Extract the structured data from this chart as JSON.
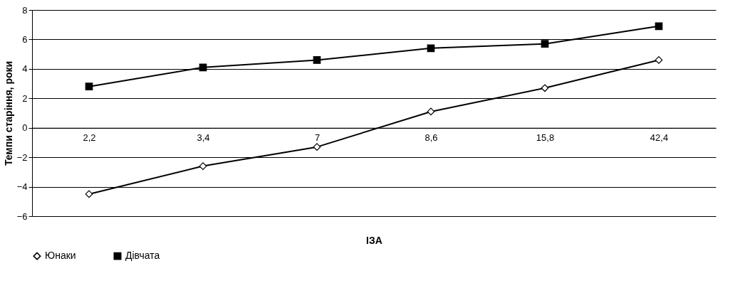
{
  "chart_data": {
    "type": "line",
    "xlabel": "ІЗА",
    "ylabel": "Темпи старіння, роки",
    "categories": [
      "2,2",
      "3,4",
      "7",
      "8,6",
      "15,8",
      "42,4"
    ],
    "series": [
      {
        "name": "Юнаки",
        "color": "#000000",
        "marker": "diamond",
        "values": [
          -4.5,
          -2.6,
          -1.3,
          1.1,
          2.7,
          4.6
        ]
      },
      {
        "name": "Дівчата",
        "color": "#000000",
        "marker": "square",
        "values": [
          2.8,
          4.1,
          4.6,
          5.4,
          5.7,
          6.9
        ]
      }
    ],
    "ylim": [
      -6,
      8
    ],
    "yticks": [
      -6,
      -4,
      -2,
      0,
      2,
      4,
      6,
      8
    ],
    "grid": "y",
    "legend": "bottom"
  }
}
